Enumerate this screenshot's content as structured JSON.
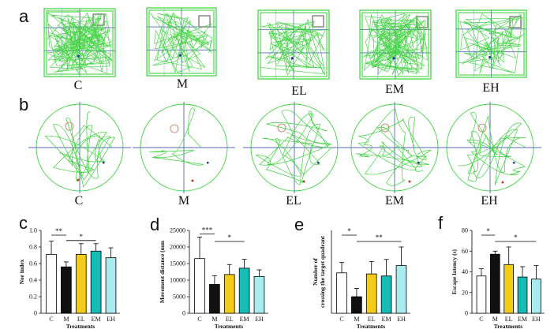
{
  "panel_labels": [
    "a",
    "b",
    "c",
    "d",
    "e",
    "f"
  ],
  "top_panels": {
    "groups": [
      "C",
      "M",
      "EL",
      "EM",
      "EH"
    ]
  },
  "colors": {
    "track": "#3ad13a",
    "axis": "#5566bb",
    "box": "#888888",
    "circle_platform": "#c07060",
    "dot_blue": "#2a3a9a",
    "dot_red": "#b84020",
    "C": "#ffffff",
    "M": "#111111",
    "EL": "#f3cc1a",
    "EM": "#17bcb4",
    "EH": "#a9ecf0"
  },
  "chart_data": [
    {
      "type": "bar",
      "panel": "c",
      "categories": [
        "C",
        "M",
        "EL",
        "EM",
        "EH"
      ],
      "values": [
        0.71,
        0.56,
        0.71,
        0.75,
        0.67
      ],
      "errors": [
        0.16,
        0.06,
        0.13,
        0.09,
        0.12
      ],
      "ylabel": "Nor index",
      "xlabel": "Treatments",
      "ylim": [
        0,
        1.0
      ],
      "yticks": [
        "0",
        "0.2",
        "0.4",
        "0.6",
        "0.8",
        "1.0"
      ],
      "sig": [
        {
          "from": "C",
          "to": "M",
          "label": "**"
        },
        {
          "from": "M",
          "to": "EM",
          "label": "*"
        }
      ]
    },
    {
      "type": "bar",
      "panel": "d",
      "categories": [
        "C",
        "M",
        "EL",
        "EM",
        "EH"
      ],
      "values": [
        16500,
        8700,
        11700,
        13600,
        11100
      ],
      "errors": [
        6500,
        2600,
        3000,
        2700,
        2000
      ],
      "ylabel": "Movement distance (mm",
      "xlabel": "Treatments",
      "ylim": [
        0,
        25000
      ],
      "yticks": [
        "0",
        "5000",
        "10000",
        "15000",
        "20000",
        "25000"
      ],
      "sig": [
        {
          "from": "C",
          "to": "M",
          "label": "***"
        },
        {
          "from": "M",
          "to": "EM",
          "label": "*"
        }
      ]
    },
    {
      "type": "bar",
      "panel": "e",
      "categories": [
        "C",
        "M",
        "EL",
        "EM",
        "EH"
      ],
      "values": [
        3.9,
        1.6,
        3.8,
        3.6,
        4.6
      ],
      "errors": [
        1.0,
        0.8,
        1.2,
        1.6,
        1.8
      ],
      "ylabel": "Number of crossing the target quadrant",
      "xlabel": "Treatments",
      "ylim": [
        0,
        8
      ],
      "yticks": [],
      "sig": [
        {
          "from": "C",
          "to": "M",
          "label": "*"
        },
        {
          "from": "M",
          "to": "EH",
          "label": "**"
        }
      ]
    },
    {
      "type": "bar",
      "panel": "f",
      "categories": [
        "C",
        "M",
        "EL",
        "EM",
        "EH"
      ],
      "values": [
        36,
        57,
        47,
        35,
        33
      ],
      "errors": [
        7,
        3,
        17,
        10,
        13
      ],
      "ylabel": "Escape latency (s)",
      "xlabel": "Treatments",
      "ylim": [
        0,
        80
      ],
      "yticks": [
        "0",
        "20",
        "40",
        "60",
        "80"
      ],
      "sig": [
        {
          "from": "C",
          "to": "M",
          "label": "*"
        },
        {
          "from": "M",
          "to": "EH",
          "label": "*"
        }
      ]
    }
  ]
}
